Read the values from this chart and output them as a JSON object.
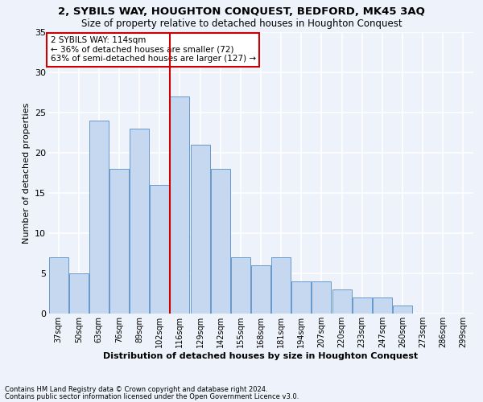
{
  "title1": "2, SYBILS WAY, HOUGHTON CONQUEST, BEDFORD, MK45 3AQ",
  "title2": "Size of property relative to detached houses in Houghton Conquest",
  "xlabel": "Distribution of detached houses by size in Houghton Conquest",
  "ylabel": "Number of detached properties",
  "footer1": "Contains HM Land Registry data © Crown copyright and database right 2024.",
  "footer2": "Contains public sector information licensed under the Open Government Licence v3.0.",
  "annotation_line1": "2 SYBILS WAY: 114sqm",
  "annotation_line2": "← 36% of detached houses are smaller (72)",
  "annotation_line3": "63% of semi-detached houses are larger (127) →",
  "categories": [
    "37sqm",
    "50sqm",
    "63sqm",
    "76sqm",
    "89sqm",
    "102sqm",
    "116sqm",
    "129sqm",
    "142sqm",
    "155sqm",
    "168sqm",
    "181sqm",
    "194sqm",
    "207sqm",
    "220sqm",
    "233sqm",
    "247sqm",
    "260sqm",
    "273sqm",
    "286sqm",
    "299sqm"
  ],
  "values": [
    7,
    5,
    24,
    18,
    23,
    16,
    27,
    21,
    18,
    7,
    6,
    7,
    4,
    4,
    3,
    2,
    2,
    1,
    0,
    0,
    0
  ],
  "bar_color": "#c5d8f0",
  "bar_edge_color": "#6699cc",
  "highlight_index": 6,
  "highlight_line_color": "#cc0000",
  "annotation_box_color": "#ffffff",
  "annotation_box_edge": "#cc0000",
  "bg_color": "#eef2fa",
  "grid_color": "#ffffff",
  "ylim": [
    0,
    35
  ],
  "yticks": [
    0,
    5,
    10,
    15,
    20,
    25,
    30,
    35
  ]
}
